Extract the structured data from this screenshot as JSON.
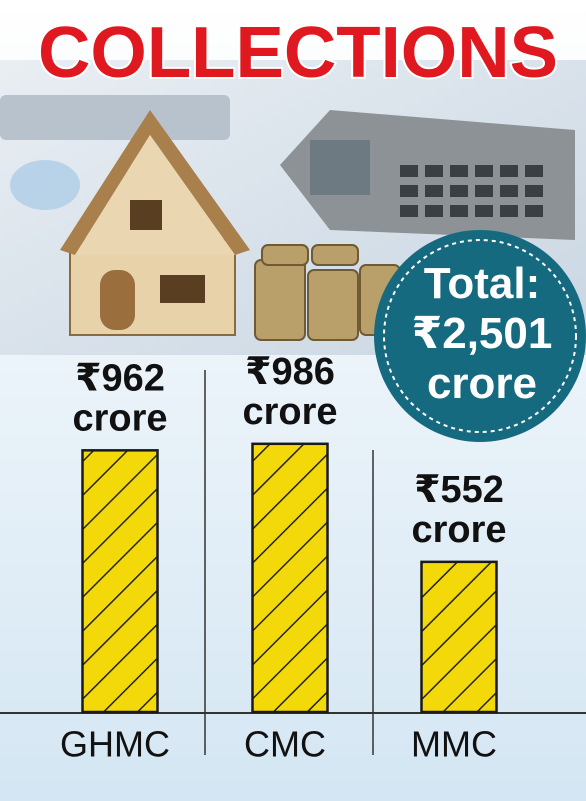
{
  "chart_data": {
    "type": "bar",
    "title": "COLLECTIONS",
    "annotation": "Total: ₹2,501 crore",
    "categories": [
      "GHMC",
      "CMC",
      "MMC"
    ],
    "values": [
      962,
      986,
      552
    ],
    "value_labels": [
      "₹962 crore",
      "₹986 crore",
      "₹552 crore"
    ],
    "color": "#f4d90a"
  }
}
